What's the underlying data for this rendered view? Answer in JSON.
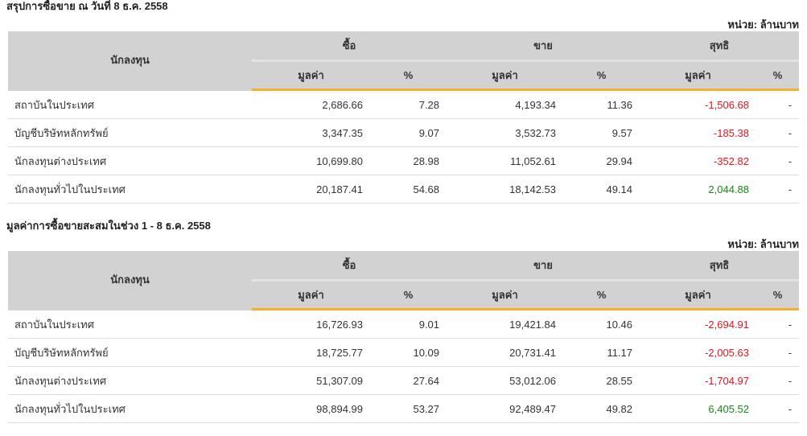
{
  "headers": {
    "investor": "นักลงทุน",
    "buy": "ซื้อ",
    "sell": "ขาย",
    "net": "สุทธิ",
    "value": "มูลค่า",
    "pct": "%"
  },
  "sections": [
    {
      "title": "สรุปการซื้อขาย ณ วันที่ 8 ธ.ค. 2558",
      "unit": "หน่วย: ล้านบาท",
      "rows": [
        {
          "investor": "สถาบันในประเทศ",
          "buy_value": "2,686.66",
          "buy_pct": "7.28",
          "sell_value": "4,193.34",
          "sell_pct": "11.36",
          "net_value": "-1,506.68",
          "net_pct": "-"
        },
        {
          "investor": "บัญชีบริษัทหลักทรัพย์",
          "buy_value": "3,347.35",
          "buy_pct": "9.07",
          "sell_value": "3,532.73",
          "sell_pct": "9.57",
          "net_value": "-185.38",
          "net_pct": "-"
        },
        {
          "investor": "นักลงทุนต่างประเทศ",
          "buy_value": "10,699.80",
          "buy_pct": "28.98",
          "sell_value": "11,052.61",
          "sell_pct": "29.94",
          "net_value": "-352.82",
          "net_pct": "-"
        },
        {
          "investor": "นักลงทุนทั่วไปในประเทศ",
          "buy_value": "20,187.41",
          "buy_pct": "54.68",
          "sell_value": "18,142.53",
          "sell_pct": "49.14",
          "net_value": "2,044.88",
          "net_pct": "-"
        }
      ]
    },
    {
      "title": "มูลค่าการซื้อขายสะสมในช่วง 1 - 8 ธ.ค. 2558",
      "unit": "หน่วย: ล้านบาท",
      "rows": [
        {
          "investor": "สถาบันในประเทศ",
          "buy_value": "16,726.93",
          "buy_pct": "9.01",
          "sell_value": "19,421.84",
          "sell_pct": "10.46",
          "net_value": "-2,694.91",
          "net_pct": "-"
        },
        {
          "investor": "บัญชีบริษัทหลักทรัพย์",
          "buy_value": "18,725.77",
          "buy_pct": "10.09",
          "sell_value": "20,731.41",
          "sell_pct": "11.17",
          "net_value": "-2,005.63",
          "net_pct": "-"
        },
        {
          "investor": "นักลงทุนต่างประเทศ",
          "buy_value": "51,307.09",
          "buy_pct": "27.64",
          "sell_value": "53,012.06",
          "sell_pct": "28.55",
          "net_value": "-1,704.97",
          "net_pct": "-"
        },
        {
          "investor": "นักลงทุนทั่วไปในประเทศ",
          "buy_value": "98,894.99",
          "buy_pct": "53.27",
          "sell_value": "92,489.47",
          "sell_pct": "49.82",
          "net_value": "6,405.52",
          "net_pct": "-"
        }
      ]
    }
  ],
  "colors": {
    "negative": "#e8131d",
    "positive": "#138a13",
    "accent": "#f6ae2d"
  }
}
